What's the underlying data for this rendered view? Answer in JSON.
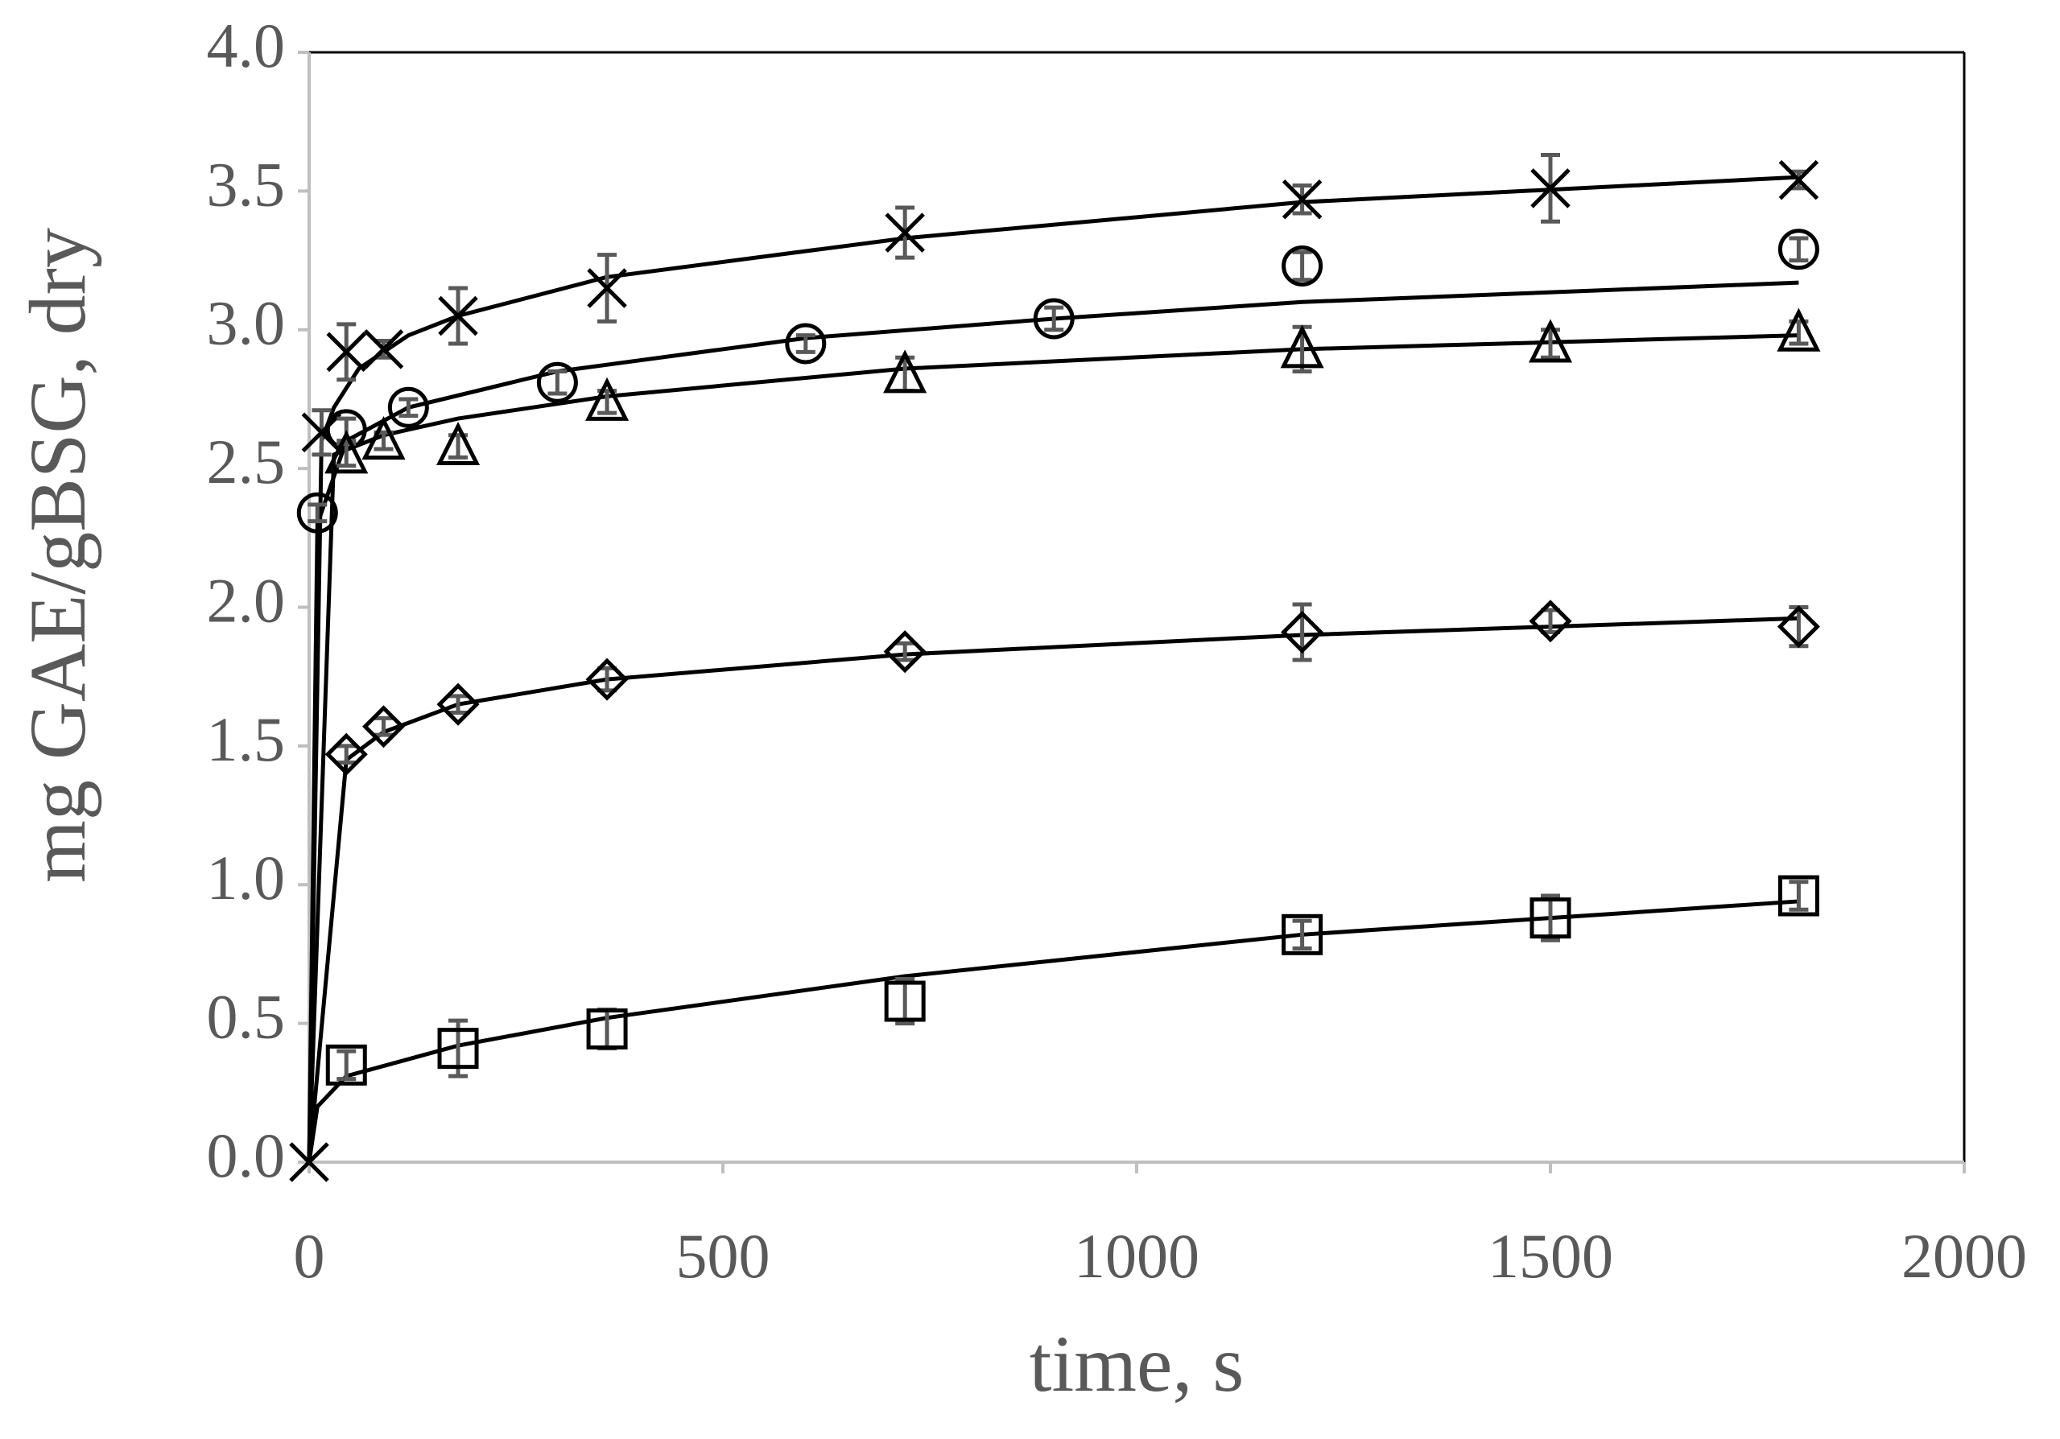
{
  "chart_data": {
    "type": "scatter",
    "x_label": "time, s",
    "y_label": "mg GAE/gBSG, dry",
    "xlim": [
      0,
      2000
    ],
    "xticks": [
      0,
      500,
      1000,
      1500,
      2000
    ],
    "ylim": [
      0,
      4
    ],
    "yticks": [
      {
        "value": 0,
        "label": "0.0"
      },
      0.5,
      {
        "value": 1,
        "label": "1.0"
      },
      1.5,
      {
        "value": 2,
        "label": "2.0"
      },
      2.5,
      {
        "value": 3,
        "label": "3.0"
      },
      3.5,
      {
        "value": 4,
        "label": "4.0"
      }
    ],
    "grid": false,
    "error_color": "#595959",
    "series": [
      {
        "marker": "x",
        "color": "#000000",
        "x": [
          0,
          15,
          45,
          90,
          180,
          360,
          720,
          1200,
          1500,
          1800
        ],
        "values": [
          0,
          2.63,
          2.92,
          2.93,
          3.05,
          3.15,
          3.35,
          3.47,
          3.51,
          3.54
        ],
        "errors": [
          null,
          0.08,
          0.1,
          0.03,
          0.1,
          0.12,
          0.09,
          0.05,
          0.12,
          0.03
        ],
        "fit": {
          "x": [
            0,
            15,
            30,
            60,
            120,
            180,
            360,
            720,
            1200,
            1800
          ],
          "values": [
            0,
            2.6,
            2.72,
            2.86,
            2.98,
            3.05,
            3.19,
            3.33,
            3.46,
            3.55
          ]
        }
      },
      {
        "marker": "circle",
        "color": "#000000",
        "x": [
          10,
          45,
          120,
          300,
          600,
          900,
          1200,
          1800
        ],
        "values": [
          2.34,
          2.64,
          2.72,
          2.81,
          2.95,
          3.04,
          3.23,
          3.29
        ],
        "errors": [
          0.03,
          0.04,
          0.03,
          0.04,
          0.03,
          0.04,
          0.05,
          0.04
        ],
        "fit": {
          "x": [
            0,
            10,
            45,
            120,
            300,
            600,
            900,
            1200,
            1800
          ],
          "values": [
            0,
            2.3,
            2.6,
            2.72,
            2.85,
            2.97,
            3.04,
            3.1,
            3.17
          ]
        }
      },
      {
        "marker": "triangle",
        "color": "#000000",
        "x": [
          45,
          90,
          180,
          360,
          720,
          1200,
          1500,
          1800
        ],
        "values": [
          2.55,
          2.6,
          2.58,
          2.74,
          2.84,
          2.93,
          2.95,
          2.99
        ],
        "errors": [
          0.04,
          0.03,
          0.04,
          0.04,
          0.06,
          0.08,
          0.05,
          0.04
        ],
        "fit": {
          "x": [
            0,
            30,
            90,
            180,
            360,
            720,
            1200,
            1800
          ],
          "values": [
            0,
            2.55,
            2.62,
            2.68,
            2.76,
            2.86,
            2.93,
            2.98
          ]
        }
      },
      {
        "marker": "diamond",
        "color": "#000000",
        "x": [
          45,
          90,
          180,
          360,
          720,
          1200,
          1500,
          1800
        ],
        "values": [
          1.47,
          1.57,
          1.65,
          1.74,
          1.84,
          1.91,
          1.95,
          1.93
        ],
        "errors": [
          0.03,
          0.03,
          0.03,
          0.04,
          0.03,
          0.1,
          0.04,
          0.07
        ],
        "fit": {
          "x": [
            0,
            45,
            90,
            180,
            360,
            720,
            1200,
            1800
          ],
          "values": [
            0,
            1.45,
            1.55,
            1.65,
            1.74,
            1.83,
            1.9,
            1.96
          ]
        }
      },
      {
        "marker": "square",
        "color": "#000000",
        "x": [
          45,
          180,
          360,
          720,
          1200,
          1500,
          1800
        ],
        "values": [
          0.35,
          0.41,
          0.48,
          0.58,
          0.82,
          0.88,
          0.96
        ],
        "errors": [
          0.05,
          0.1,
          0.07,
          0.08,
          0.05,
          0.08,
          0.05
        ],
        "fit": {
          "x": [
            0,
            10,
            45,
            180,
            360,
            720,
            1200,
            1800
          ],
          "values": [
            0,
            0.2,
            0.31,
            0.42,
            0.52,
            0.67,
            0.82,
            0.94
          ]
        }
      }
    ]
  }
}
